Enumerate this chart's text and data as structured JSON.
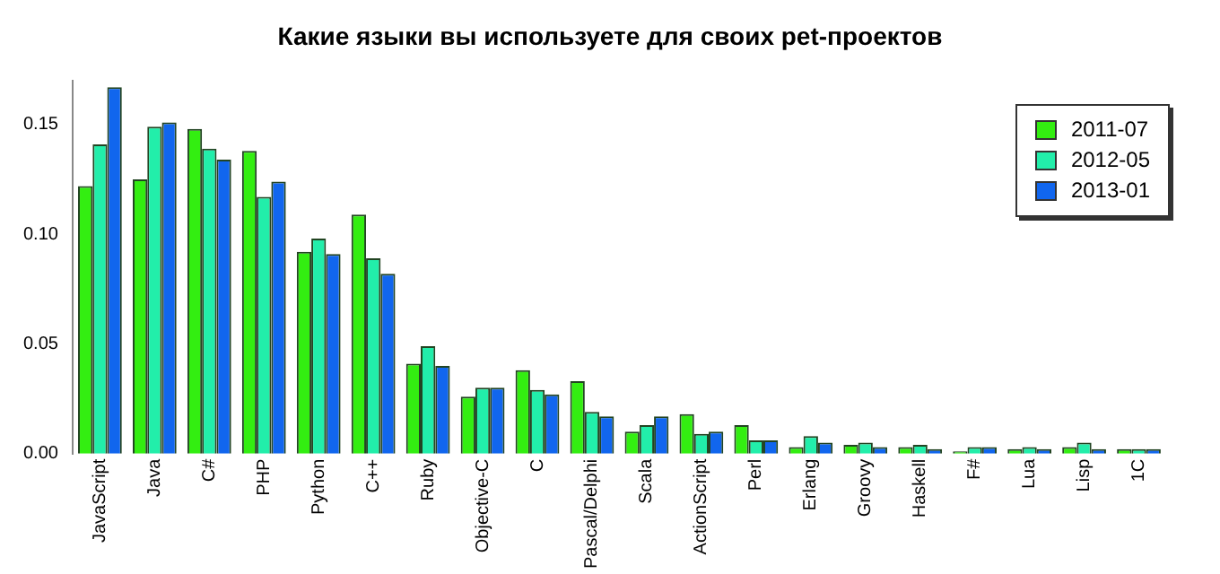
{
  "chart_data": {
    "type": "bar",
    "title": "Какие языки вы используете для своих pet-проектов",
    "categories": [
      "JavaScript",
      "Java",
      "C#",
      "PHP",
      "Python",
      "C++",
      "Ruby",
      "Objective-C",
      "C",
      "Pascal/Delphi",
      "Scala",
      "ActionScript",
      "Perl",
      "Erlang",
      "Groovy",
      "Haskell",
      "F#",
      "Lua",
      "Lisp",
      "1C"
    ],
    "series": [
      {
        "name": "2011-07",
        "color": "#33ee11",
        "values": [
          0.122,
          0.125,
          0.148,
          0.138,
          0.092,
          0.109,
          0.041,
          0.026,
          0.038,
          0.033,
          0.01,
          0.018,
          0.013,
          0.003,
          0.004,
          0.003,
          0.001,
          0.002,
          0.003,
          0.002
        ]
      },
      {
        "name": "2012-05",
        "color": "#22eeaa",
        "values": [
          0.141,
          0.149,
          0.139,
          0.117,
          0.098,
          0.089,
          0.049,
          0.03,
          0.029,
          0.019,
          0.013,
          0.009,
          0.006,
          0.008,
          0.005,
          0.004,
          0.003,
          0.003,
          0.005,
          0.002
        ]
      },
      {
        "name": "2013-01",
        "color": "#1166ee",
        "values": [
          0.167,
          0.151,
          0.134,
          0.124,
          0.091,
          0.082,
          0.04,
          0.03,
          0.027,
          0.017,
          0.017,
          0.01,
          0.006,
          0.005,
          0.003,
          0.002,
          0.003,
          0.002,
          0.002,
          0.002
        ]
      }
    ],
    "ylim": [
      0,
      0.17
    ],
    "yticks": [
      {
        "value": 0,
        "label": "0.00"
      },
      0.05,
      {
        "value": 0.1,
        "label": "0.10"
      },
      0.15
    ],
    "grid": false,
    "legend": "top right"
  }
}
